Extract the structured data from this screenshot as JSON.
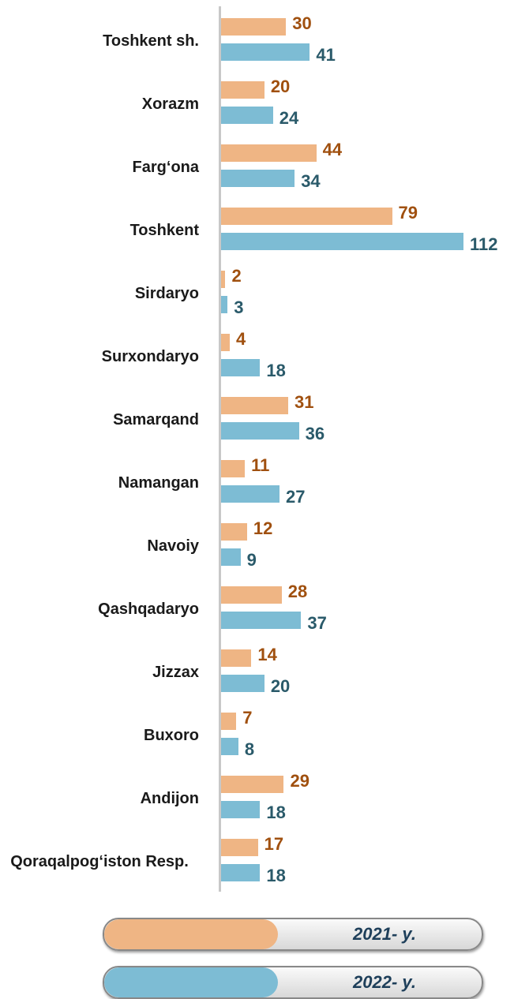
{
  "chart_data": {
    "type": "bar",
    "orientation": "horizontal",
    "categories": [
      "Toshkent sh.",
      "Xorazm",
      "Farg‘ona",
      "Toshkent",
      "Sirdaryo",
      "Surxondaryo",
      "Samarqand",
      "Namangan",
      "Navoiy",
      "Qashqadaryo",
      "Jizzax",
      "Buxoro",
      "Andijon",
      "Qoraqalpog‘iston Resp."
    ],
    "series": [
      {
        "name": "2021- y.",
        "color": "#efb584",
        "label_color": "#a0500f",
        "values": [
          30,
          20,
          44,
          79,
          2,
          4,
          31,
          11,
          12,
          28,
          14,
          7,
          29,
          17
        ]
      },
      {
        "name": "2022- y.",
        "color": "#7dbcd4",
        "label_color": "#2a5a6a",
        "values": [
          41,
          24,
          34,
          112,
          3,
          18,
          36,
          27,
          9,
          37,
          20,
          8,
          18,
          18
        ]
      }
    ],
    "xlim": [
      0,
      112
    ]
  }
}
